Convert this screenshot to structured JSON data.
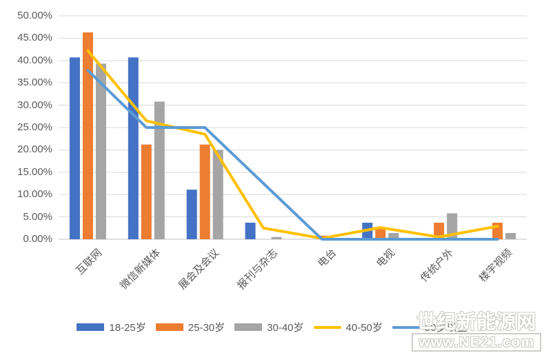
{
  "watermark": {
    "line1": "世纪新能源网",
    "line2": "www.NE21.com"
  },
  "chart_data": {
    "type": "combo",
    "title": "",
    "categories": [
      "互联网",
      "微信新媒体",
      "展会及会议",
      "报刊与杂志",
      "电台",
      "电视",
      "传统户外",
      "楼宇视频"
    ],
    "series": [
      {
        "name": "18-25岁",
        "type": "bar",
        "color": "#4472C4",
        "values": [
          40.7,
          40.7,
          11.1,
          3.7,
          0,
          3.7,
          0,
          0
        ]
      },
      {
        "name": "25-30岁",
        "type": "bar",
        "color": "#ED7D31",
        "values": [
          46.3,
          21.2,
          21.2,
          0,
          0.8,
          2.6,
          3.7,
          3.7
        ]
      },
      {
        "name": "30-40岁",
        "type": "bar",
        "color": "#A5A5A5",
        "values": [
          39.3,
          30.8,
          20.0,
          0.5,
          0,
          1.4,
          5.8,
          1.4
        ]
      },
      {
        "name": "40-50岁",
        "type": "line",
        "color": "#FFC000",
        "values": [
          42.2,
          26.5,
          23.5,
          2.5,
          0.2,
          2.6,
          0.5,
          2.9
        ]
      },
      {
        "name": "50岁以上",
        "type": "line",
        "color": "#5B9BD5",
        "values": [
          37.8,
          25.0,
          25.0,
          12.5,
          0,
          0,
          0,
          0
        ]
      }
    ],
    "ylim": [
      0,
      50
    ],
    "ytick_step": 5,
    "y_ticks": [
      "0.00%",
      "5.00%",
      "10.00%",
      "15.00%",
      "20.00%",
      "25.00%",
      "30.00%",
      "35.00%",
      "40.00%",
      "45.00%",
      "50.00%"
    ],
    "grid": true,
    "legend_position": "bottom",
    "colors": {
      "gridline": "#D9D9D9",
      "axis_line": "#C0C0C0",
      "tick_text": "#595959"
    }
  }
}
